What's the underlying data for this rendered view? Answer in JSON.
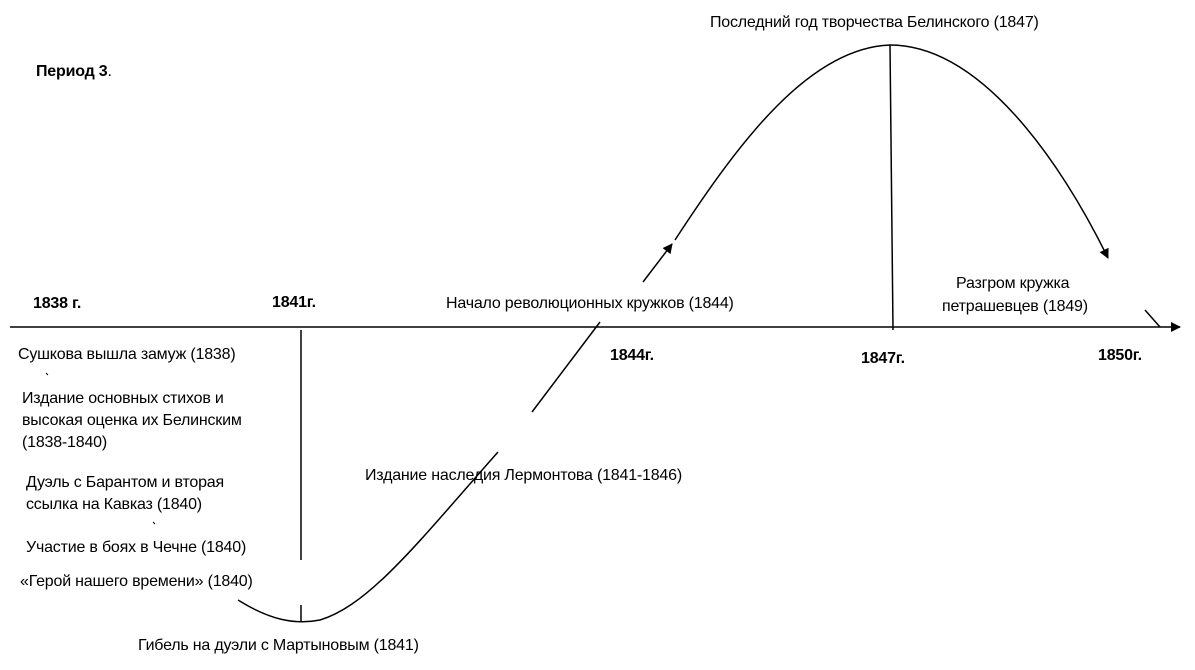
{
  "period_title": "Период 3",
  "period_dot": ".",
  "years": {
    "y1838": "1838 г.",
    "y1841": "1841г.",
    "y1844": "1844г.",
    "y1847": "1847г.",
    "y1850": "1850г."
  },
  "events_left": [
    "Сушкова вышла замуж  (1838)",
    "Издание основных стихов  и",
    "высокая оценка их Белинским",
    "(1838-1840)",
    "Дуэль с Барантом и вторая",
    "ссылка на Кавказ (1840)",
    "Участие в боях в Чечне (1840)",
    "«Герой нашего времени» (1840)"
  ],
  "death": "Гибель на дуэли с Мартыновым (1841)",
  "legacy": "Издание наследия Лермонтова (1841-1846)",
  "circles_start": "Начало революционных кружков (1844)",
  "belinsky_last": "Последний год творчества Белинского (1847)",
  "petrashevtsy": [
    "Разгром кружка",
    "петрашевцев (1849)"
  ]
}
